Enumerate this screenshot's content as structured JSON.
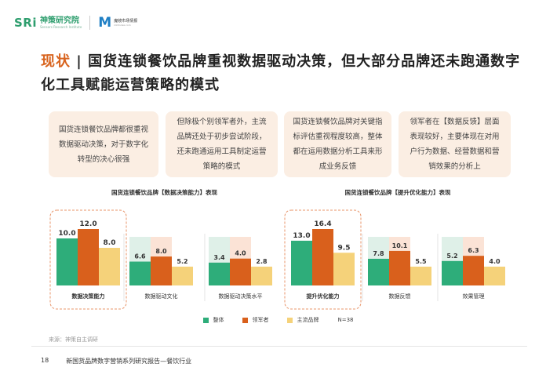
{
  "header": {
    "logo1_mark": "SRi",
    "logo1_cn": "神策研究院",
    "logo1_en": "Sensors Research Institute",
    "logo2_mark": "M",
    "logo2_cn": "魔镜市场情报",
    "logo2_en": "mktindex.com"
  },
  "title": {
    "highlight": "现状",
    "separator": "|",
    "text": "国货连锁餐饮品牌重视数据驱动决策，但大部分品牌还未跑通数字化工具赋能运营策略的模式"
  },
  "cards": [
    "国货连锁餐饮品牌都很重视数据驱动决策，对于数字化转型的决心很强",
    "但除极个别领军者外，主流品牌还处于初步尝试阶段，还未跑通运用工具制定运营策略的模式",
    "国货连锁餐饮品牌对关键指标评估重视程度较高，整体都在运用数据分析工具来形成业务反馈",
    "领军者在【数据反馈】层面表现较好，主要体现在对用户行为数据、经营数据和营销效果的分析上"
  ],
  "colors": {
    "overall": "#2ead7a",
    "leader": "#d9601c",
    "mainstream": "#f5d27a",
    "overall_bg": "#dff0e8",
    "leader_bg": "#fbe3d6",
    "highlight_box": "#e8956a",
    "title_highlight": "#d8641f",
    "card_bg": "#fbeee3"
  },
  "legend": {
    "overall": "整体",
    "leader": "领军者",
    "mainstream": "主流品牌",
    "n": "N=38"
  },
  "chart_data": [
    {
      "type": "bar",
      "title": "国货连锁餐饮品牌【数据决策能力】表现",
      "categories": [
        "数据决策能力",
        "数据驱动文化",
        "数据驱动决策水平"
      ],
      "series": [
        {
          "name": "整体",
          "values": [
            10.0,
            6.6,
            3.4
          ]
        },
        {
          "name": "领军者",
          "values": [
            12.0,
            8.0,
            4.0
          ]
        },
        {
          "name": "主流品牌",
          "values": [
            8.0,
            5.2,
            2.8
          ]
        }
      ],
      "highlighted_category": "数据决策能力"
    },
    {
      "type": "bar",
      "title": "国货连锁餐饮品牌【提升优化能力】表现",
      "categories": [
        "提升优化能力",
        "数据反馈",
        "效果管理"
      ],
      "series": [
        {
          "name": "整体",
          "values": [
            13.0,
            7.8,
            5.2
          ]
        },
        {
          "name": "领军者",
          "values": [
            16.4,
            10.1,
            6.3
          ]
        },
        {
          "name": "主流品牌",
          "values": [
            9.5,
            5.5,
            4.0
          ]
        }
      ],
      "highlighted_category": "提升优化能力"
    }
  ],
  "source": "来源：神策自主调研",
  "footer": {
    "page": "18",
    "text": "新国货品牌数字营销系列研究报告—餐饮行业"
  }
}
